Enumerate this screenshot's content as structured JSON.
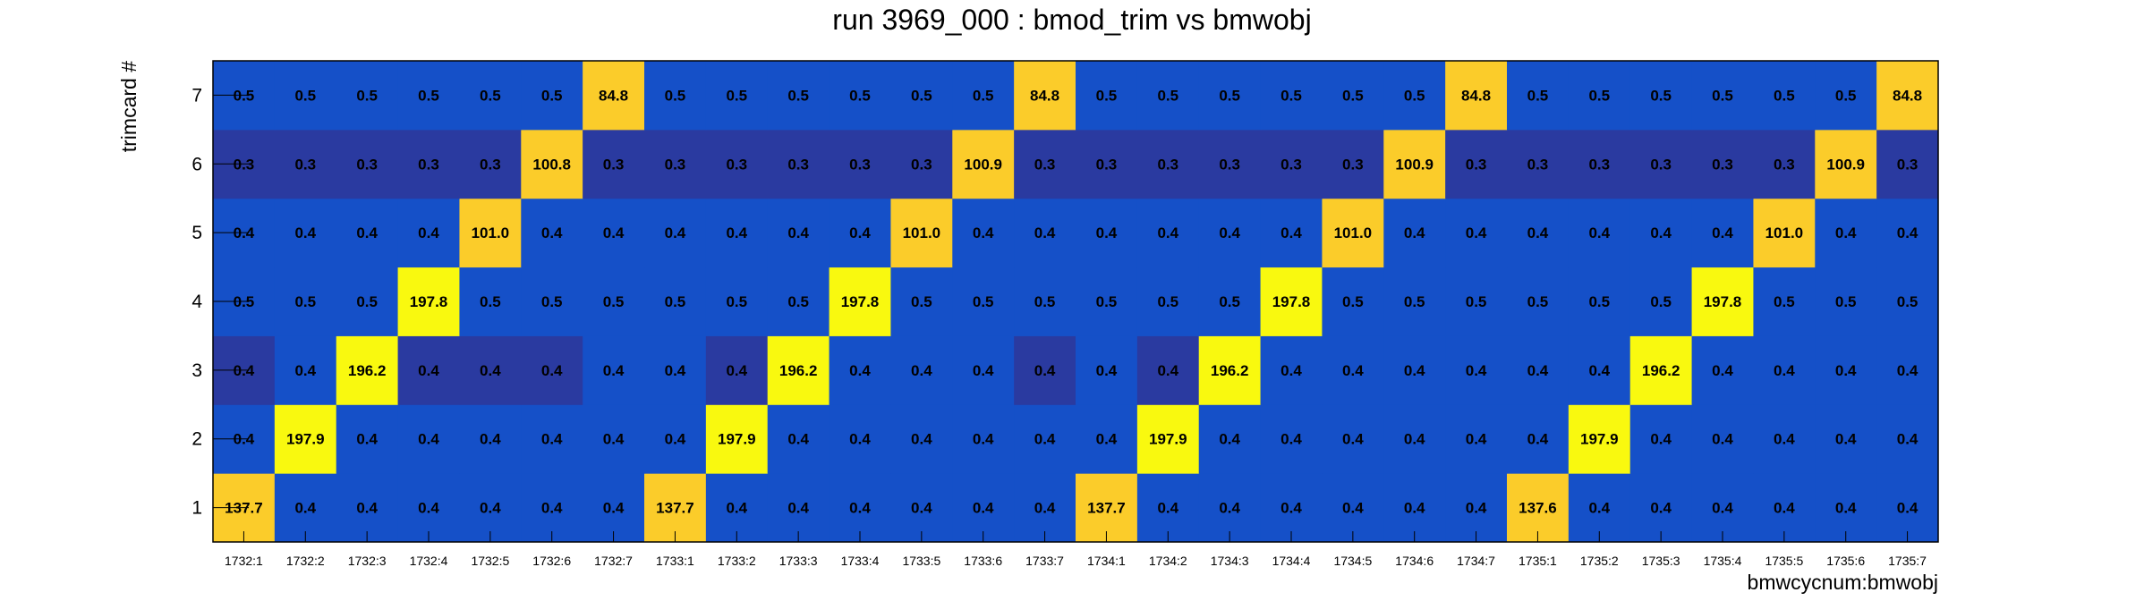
{
  "chart_data": {
    "type": "heatmap",
    "title": "run 3969_000 : bmod_trim vs bmwobj",
    "xlabel": "bmwcycnum:bmwobj",
    "ylabel": "trimcard #",
    "x_categories": [
      "1732:1",
      "1732:2",
      "1732:3",
      "1732:4",
      "1732:5",
      "1732:6",
      "1732:7",
      "1733:1",
      "1733:2",
      "1733:3",
      "1733:4",
      "1733:5",
      "1733:6",
      "1733:7",
      "1734:1",
      "1734:2",
      "1734:3",
      "1734:4",
      "1734:5",
      "1734:6",
      "1734:7",
      "1735:1",
      "1735:2",
      "1735:3",
      "1735:4",
      "1735:5",
      "1735:6",
      "1735:7"
    ],
    "y_categories": [
      "1",
      "2",
      "3",
      "4",
      "5",
      "6",
      "7"
    ],
    "values": [
      [
        137.7,
        0.4,
        0.4,
        0.4,
        0.4,
        0.4,
        0.4,
        137.7,
        0.4,
        0.4,
        0.4,
        0.4,
        0.4,
        0.4,
        137.7,
        0.4,
        0.4,
        0.4,
        0.4,
        0.4,
        0.4,
        137.6,
        0.4,
        0.4,
        0.4,
        0.4,
        0.4,
        0.4
      ],
      [
        0.4,
        197.9,
        0.4,
        0.4,
        0.4,
        0.4,
        0.4,
        0.4,
        197.9,
        0.4,
        0.4,
        0.4,
        0.4,
        0.4,
        0.4,
        197.9,
        0.4,
        0.4,
        0.4,
        0.4,
        0.4,
        0.4,
        197.9,
        0.4,
        0.4,
        0.4,
        0.4,
        0.4
      ],
      [
        0.4,
        0.4,
        196.2,
        0.4,
        0.4,
        0.4,
        0.4,
        0.4,
        0.4,
        196.2,
        0.4,
        0.4,
        0.4,
        0.4,
        0.4,
        0.4,
        196.2,
        0.4,
        0.4,
        0.4,
        0.4,
        0.4,
        0.4,
        196.2,
        0.4,
        0.4,
        0.4,
        0.4
      ],
      [
        0.5,
        0.5,
        0.5,
        197.8,
        0.5,
        0.5,
        0.5,
        0.5,
        0.5,
        0.5,
        197.8,
        0.5,
        0.5,
        0.5,
        0.5,
        0.5,
        0.5,
        197.8,
        0.5,
        0.5,
        0.5,
        0.5,
        0.5,
        0.5,
        197.8,
        0.5,
        0.5,
        0.5
      ],
      [
        0.4,
        0.4,
        0.4,
        0.4,
        101.0,
        0.4,
        0.4,
        0.4,
        0.4,
        0.4,
        0.4,
        101.0,
        0.4,
        0.4,
        0.4,
        0.4,
        0.4,
        0.4,
        101.0,
        0.4,
        0.4,
        0.4,
        0.4,
        0.4,
        0.4,
        101.0,
        0.4,
        0.4
      ],
      [
        0.3,
        0.3,
        0.3,
        0.3,
        0.3,
        100.8,
        0.3,
        0.3,
        0.3,
        0.3,
        0.3,
        0.3,
        100.9,
        0.3,
        0.3,
        0.3,
        0.3,
        0.3,
        0.3,
        100.9,
        0.3,
        0.3,
        0.3,
        0.3,
        0.3,
        0.3,
        100.9,
        0.3
      ],
      [
        0.5,
        0.5,
        0.5,
        0.5,
        0.5,
        0.5,
        84.8,
        0.5,
        0.5,
        0.5,
        0.5,
        0.5,
        0.5,
        84.8,
        0.5,
        0.5,
        0.5,
        0.5,
        0.5,
        0.5,
        84.8,
        0.5,
        0.5,
        0.5,
        0.5,
        0.5,
        0.5,
        84.8
      ]
    ],
    "value_format_decimals": 1,
    "colors": {
      "high": "#f9f90f",
      "mid": "#fbcc2a",
      "base": "#1550c8",
      "dark": "#2a3aa0",
      "frame": "#000000"
    },
    "color_rules": [
      {
        "min": 150,
        "color": "high"
      },
      {
        "min": 50,
        "color": "mid"
      },
      {
        "min": 0.45,
        "color": "base"
      },
      {
        "min": 0.39,
        "color": "base"
      },
      {
        "min": 0,
        "color": "dark"
      }
    ],
    "dark_cells": [
      [
        2,
        0
      ],
      [
        2,
        3
      ],
      [
        2,
        4
      ],
      [
        2,
        5
      ],
      [
        2,
        8
      ],
      [
        2,
        13
      ],
      [
        2,
        15
      ]
    ]
  }
}
